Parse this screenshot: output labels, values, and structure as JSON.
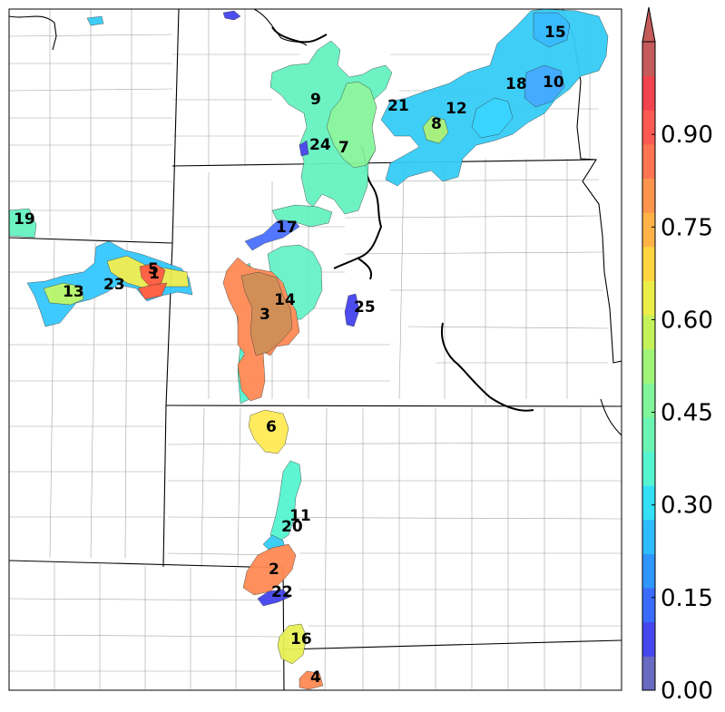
{
  "colorbar": {
    "ticks": [
      "0.00",
      "0.15",
      "0.30",
      "0.45",
      "0.60",
      "0.75",
      "0.90"
    ],
    "min": 0.0,
    "max": 1.05,
    "extend": "max",
    "colors": [
      "#6a6ac2",
      "#4646ee",
      "#3a6bff",
      "#2f95ff",
      "#2fbcff",
      "#33e0f5",
      "#55f5d0",
      "#6cf5b2",
      "#80f59a",
      "#a0f578",
      "#c4f25a",
      "#ecee48",
      "#ffd540",
      "#ffb347",
      "#ff944c",
      "#ff7550",
      "#ff5a52",
      "#f0434d",
      "#c45a5a"
    ]
  },
  "regions": [
    {
      "id": "1",
      "value": 0.87,
      "color": "#ff5a3c"
    },
    {
      "id": "2",
      "value": 0.77,
      "color": "#ff8a55"
    },
    {
      "id": "3",
      "value": 0.78,
      "color": "#cf8a4f"
    },
    {
      "id": "4",
      "value": 0.77,
      "color": "#ff8a55"
    },
    {
      "id": "5",
      "value": 0.87,
      "color": "#ff5a3c"
    },
    {
      "id": "6",
      "value": 0.65,
      "color": "#ffea55"
    },
    {
      "id": "7",
      "value": 0.5,
      "color": "#86f59a"
    },
    {
      "id": "8",
      "value": 0.52,
      "color": "#a3f07a"
    },
    {
      "id": "9",
      "value": 0.43,
      "color": "#66f2c0"
    },
    {
      "id": "10",
      "value": 0.25,
      "color": "#3aa8ff"
    },
    {
      "id": "11",
      "value": 0.42,
      "color": "#55f5d0"
    },
    {
      "id": "12",
      "value": 0.32,
      "color": "#2fcaff"
    },
    {
      "id": "13",
      "value": 0.55,
      "color": "#b6f56a"
    },
    {
      "id": "14",
      "value": 0.42,
      "color": "#66f2c8"
    },
    {
      "id": "15",
      "value": 0.3,
      "color": "#2fb8ff"
    },
    {
      "id": "16",
      "value": 0.62,
      "color": "#e8f055"
    },
    {
      "id": "17",
      "value": 0.2,
      "color": "#4a70ff"
    },
    {
      "id": "18",
      "value": 0.32,
      "color": "#2fd2ff"
    },
    {
      "id": "19",
      "value": 0.45,
      "color": "#66f2c0"
    },
    {
      "id": "20",
      "value": 0.42,
      "color": "#55f5d0"
    },
    {
      "id": "21",
      "value": 0.35,
      "color": "#3ad6f0"
    },
    {
      "id": "22",
      "value": 0.15,
      "color": "#4444ee"
    },
    {
      "id": "23",
      "value": 0.32,
      "color": "#35c8ff"
    },
    {
      "id": "24",
      "value": 0.45,
      "color": "#66f2c0"
    },
    {
      "id": "25",
      "value": 0.15,
      "color": "#4444ee"
    }
  ]
}
